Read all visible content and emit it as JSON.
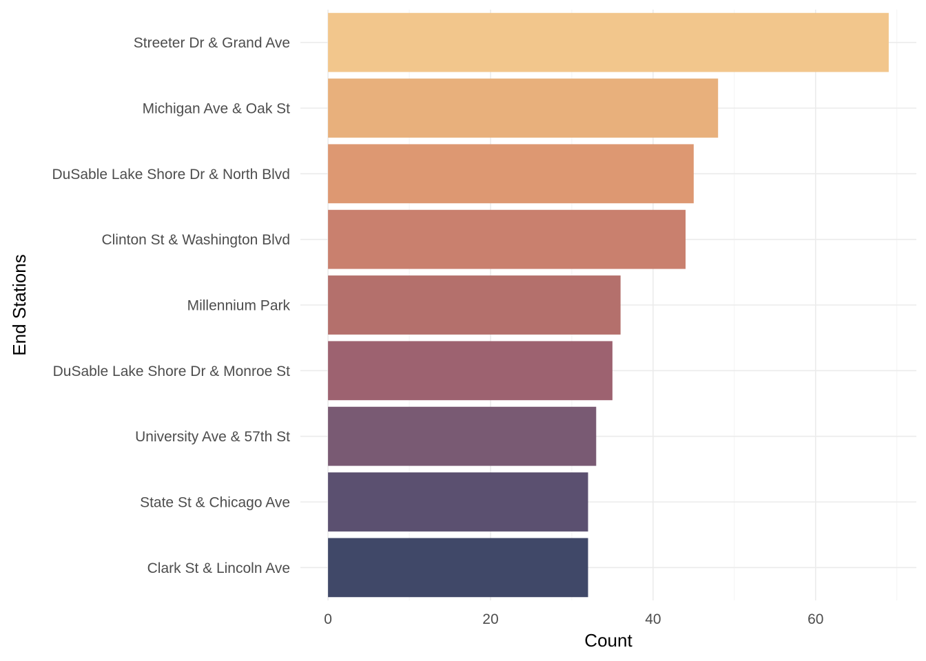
{
  "chart_data": {
    "type": "bar",
    "orientation": "horizontal",
    "categories": [
      "Streeter Dr & Grand Ave",
      "Michigan Ave & Oak St",
      "DuSable Lake Shore Dr & North Blvd",
      "Clinton St & Washington Blvd",
      "Millennium Park",
      "DuSable Lake Shore Dr & Monroe St",
      "University Ave & 57th St",
      "State St & Chicago Ave",
      "Clark St & Lincoln Ave"
    ],
    "values": [
      69,
      48,
      45,
      44,
      36,
      35,
      33,
      32,
      32
    ],
    "colors": [
      "#f2c68c",
      "#e8b07c",
      "#dd9872",
      "#c9806e",
      "#b4706c",
      "#9d6270",
      "#795a73",
      "#5b5070",
      "#404868"
    ],
    "xlabel": "Count",
    "ylabel": "End Stations",
    "xlim": [
      -3.4,
      72.4
    ],
    "x_ticks": [
      0,
      20,
      40,
      60
    ],
    "x_tick_labels": [
      "0",
      "20",
      "40",
      "60"
    ],
    "x_minor_ticks": [
      10,
      30,
      50,
      70
    ],
    "grid": true,
    "legend": "none"
  }
}
